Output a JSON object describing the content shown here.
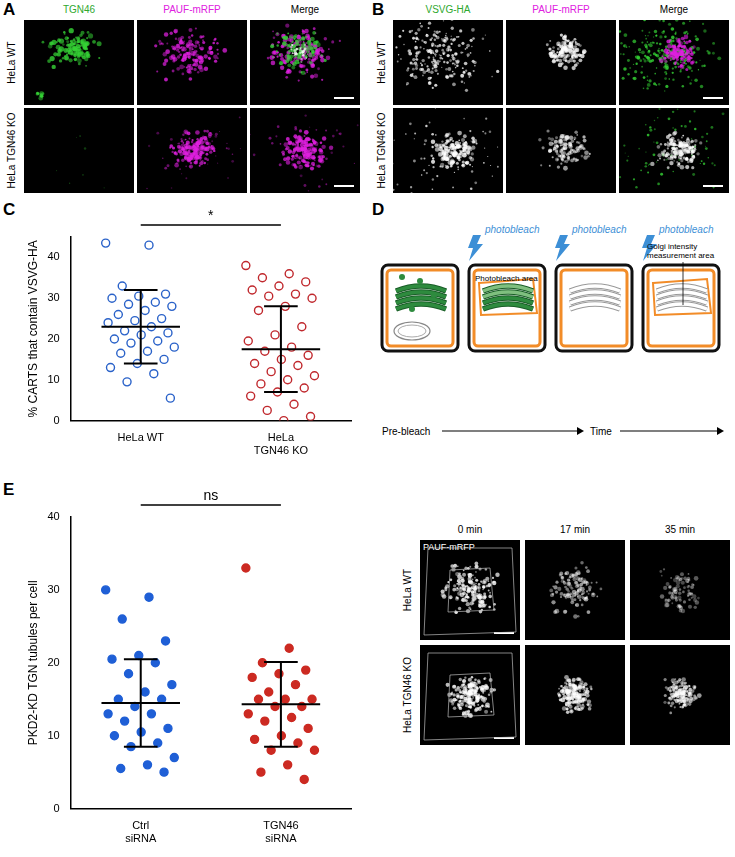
{
  "panels": {
    "A": {
      "label": "A",
      "columns": [
        "TGN46",
        "PAUF-mRFP",
        "Merge"
      ],
      "rows": [
        "HeLa WT",
        "HeLa TGN46 KO"
      ]
    },
    "B": {
      "label": "B",
      "columns": [
        "VSVG-HA",
        "PAUF-mRFP",
        "Merge"
      ],
      "rows": [
        "HeLa WT",
        "HeLa TGN46 KO"
      ]
    },
    "D": {
      "label": "D",
      "photobleach": "photobleach",
      "photobleach_area": "Photobleach area",
      "measurement_area": "Golgi intensity measurement area",
      "start": "Pre-bleach",
      "end": "Time",
      "channel": "PAUF-mRFP",
      "columns": [
        "0 min",
        "17 min",
        "35 min"
      ],
      "rows": [
        "HeLa WT",
        "HeLa TGN46 KO"
      ]
    }
  },
  "chart_data": [
    {
      "type": "scatter",
      "panel": "C",
      "y_label": "% CARTS that contain VSVG-HA",
      "categories": [
        "HeLa WT",
        "HeLa TGN46 KO"
      ],
      "values": [
        [
          43.5,
          43,
          33,
          31,
          30.5,
          30,
          29,
          28.5,
          28,
          27,
          26,
          25,
          24.5,
          24,
          23,
          22,
          21.5,
          21,
          20,
          19.5,
          19,
          18,
          17,
          16.5,
          15,
          14,
          13,
          11.5,
          9.5,
          5.5
        ],
        [
          38,
          36,
          35,
          34,
          33,
          32,
          31,
          30.5,
          30,
          28,
          27,
          23,
          21,
          19.5,
          18,
          17,
          16,
          15,
          14,
          13.5,
          12,
          11,
          10,
          9,
          8,
          7,
          6,
          4,
          2.5,
          1,
          0
        ]
      ],
      "means": [
        23,
        17.5
      ],
      "sd": [
        9,
        10.5
      ],
      "colors": [
        "#2a62c9",
        "#c0282d"
      ],
      "marker": "open_circle",
      "significance": "*",
      "ylim": [
        0,
        45
      ],
      "yticks": [
        0,
        10,
        20,
        30,
        40
      ],
      "grid": false
    },
    {
      "type": "scatter",
      "panel": "E",
      "y_label": "PKD2-KD TGN tubules per cell",
      "categories": [
        "Ctrl siRNA",
        "TGN46 siRNA"
      ],
      "values": [
        [
          30,
          29,
          26,
          23,
          21,
          20.5,
          20,
          18.5,
          17,
          16,
          15,
          15,
          14,
          13,
          13,
          12,
          11,
          10.5,
          10,
          9,
          8.5,
          7,
          6,
          5.5,
          5
        ],
        [
          33,
          22,
          20,
          19,
          18.5,
          18,
          17,
          16,
          15,
          15,
          15,
          14,
          14,
          13,
          12.5,
          12,
          11,
          10,
          9.5,
          9,
          8,
          8,
          6,
          5,
          4
        ]
      ],
      "means": [
        14.5,
        14.3
      ],
      "sd": [
        6,
        5.8
      ],
      "colors": [
        "#1f5fd6",
        "#cc2a22"
      ],
      "marker": "circle",
      "significance": "ns",
      "ylim": [
        0,
        40
      ],
      "yticks": [
        0,
        10,
        20,
        30,
        40
      ],
      "grid": false
    }
  ]
}
